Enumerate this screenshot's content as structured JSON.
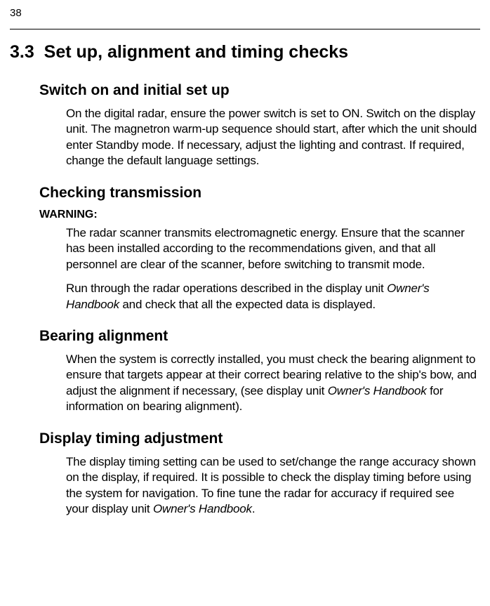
{
  "pageNumber": "38",
  "section": {
    "number": "3.3",
    "title": "Set up, alignment and timing checks"
  },
  "subsections": [
    {
      "heading": "Switch on and initial set up",
      "paragraphs": [
        "On the digital radar, ensure the power switch is set to ON. Switch on the display unit. The magnetron warm-up sequence should start, after which the unit should enter Standby mode. If necessary, adjust the lighting and contrast. If required, change the default language settings."
      ]
    },
    {
      "heading": "Checking transmission",
      "warning": "WARNING:",
      "paragraphs": [
        "The radar scanner transmits electromagnetic energy. Ensure that the scanner has been installed according to the recommendations given, and that all personnel are clear of the scanner, before switching to transmit mode.",
        "Run through the radar operations described in the display unit <i>Owner's Handbook</i> and check that all the expected data is displayed."
      ]
    },
    {
      "heading": "Bearing alignment",
      "paragraphs": [
        "When the system is correctly installed, you must check the bearing alignment to ensure that targets appear at their correct bearing relative to the ship's bow, and adjust the alignment if necessary, (see display unit <i>Owner's Handbook</i> for information on bearing alignment)."
      ]
    },
    {
      "heading": "Display timing adjustment",
      "paragraphs": [
        "The display timing setting can be used to set/change the range accuracy shown on the display, if required. It is possible to check the display timing before using the system for navigation. To fine tune the radar for accuracy if required see your display unit <i>Owner's Handbook</i>."
      ]
    }
  ]
}
